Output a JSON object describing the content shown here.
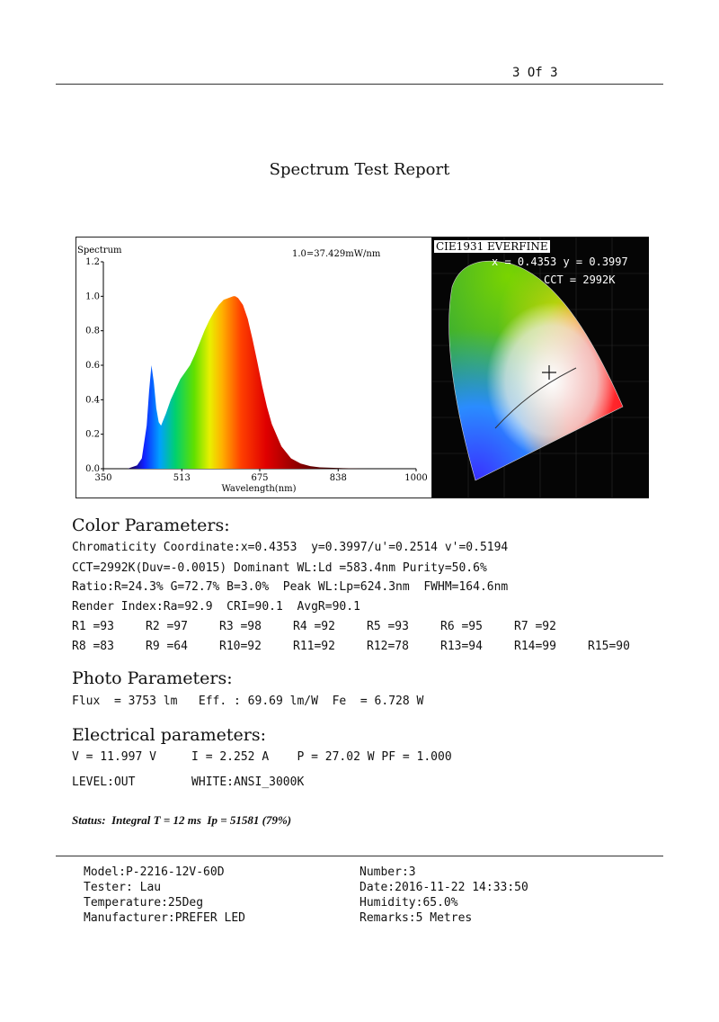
{
  "header": {
    "page_label": "3 Of 3"
  },
  "title": "Spectrum Test Report",
  "spectrum": {
    "title": "Spectrum",
    "scale_note": "1.0=37.429mW/nm",
    "xlabel": "Wavelength(nm)",
    "x_ticks": [
      "350",
      "513",
      "675",
      "838",
      "1000"
    ],
    "y_ticks": [
      "0.0",
      "0.2",
      "0.4",
      "0.6",
      "0.8",
      "1.0",
      "1.2"
    ]
  },
  "cie": {
    "title": "CIE1931 EVERFINE",
    "coord_text": "x = 0.4353 y = 0.3997",
    "cct_text": "CCT = 2992K"
  },
  "chart_data": [
    {
      "type": "line",
      "title": "Spectrum",
      "xlabel": "Wavelength(nm)",
      "ylabel": "",
      "xlim": [
        350,
        1000
      ],
      "ylim": [
        0,
        1.2
      ],
      "x": [
        380,
        400,
        420,
        430,
        440,
        445,
        450,
        455,
        460,
        465,
        470,
        480,
        490,
        500,
        510,
        520,
        530,
        540,
        550,
        560,
        570,
        580,
        590,
        600,
        610,
        620,
        624,
        630,
        640,
        650,
        660,
        670,
        680,
        690,
        700,
        720,
        740,
        760,
        780,
        800,
        850,
        900,
        1000
      ],
      "y": [
        0.0,
        0.0,
        0.02,
        0.06,
        0.25,
        0.45,
        0.6,
        0.5,
        0.35,
        0.27,
        0.25,
        0.32,
        0.4,
        0.46,
        0.52,
        0.56,
        0.6,
        0.66,
        0.73,
        0.8,
        0.86,
        0.91,
        0.95,
        0.98,
        0.99,
        1.0,
        1.0,
        0.99,
        0.95,
        0.87,
        0.75,
        0.62,
        0.48,
        0.36,
        0.26,
        0.13,
        0.06,
        0.03,
        0.015,
        0.008,
        0.003,
        0.0,
        0.0
      ]
    }
  ],
  "color": {
    "heading": "Color Parameters:",
    "line1": "Chromaticity Coordinate:x=0.4353  y=0.3997/u'=0.2514 v'=0.5194",
    "line2": "CCT=2992K(Duv=-0.0015) Dominant WL:Ld =583.4nm Purity=50.6%",
    "line3": "Ratio:R=24.3% G=72.7% B=3.0%  Peak WL:Lp=624.3nm  FWHM=164.6nm",
    "line4": "Render Index:Ra=92.9  CRI=90.1  AvgR=90.1",
    "r_row1": [
      "R1 =93",
      "R2 =97",
      "R3 =98",
      "R4 =92",
      "R5 =93",
      "R6 =95",
      "R7 =92"
    ],
    "r_row2": [
      "R8 =83",
      "R9 =64",
      "R10=92",
      "R11=92",
      "R12=78",
      "R13=94",
      "R14=99",
      "R15=90"
    ]
  },
  "photo": {
    "heading": "Photo Parameters:",
    "line1": "Flux  = 3753 lm   Eff. : 69.69 lm/W  Fe  = 6.728 W"
  },
  "electrical": {
    "heading": "Electrical parameters:",
    "line1": "V = 11.997 V     I = 2.252 A    P = 27.02 W PF = 1.000",
    "line2": "LEVEL:OUT        WHITE:ANSI_3000K"
  },
  "status": "Status:  Integral T = 12 ms  Ip = 51581 (79%)",
  "footer": {
    "model": "Model:P-2216-12V-60D",
    "tester": "Tester: Lau",
    "temperature": "Temperature:25Deg",
    "manufacturer": "Manufacturer:PREFER LED",
    "number": "Number:3",
    "date": "Date:2016-11-22 14:33:50",
    "humidity": "Humidity:65.0%",
    "remarks": "Remarks:5 Metres"
  }
}
